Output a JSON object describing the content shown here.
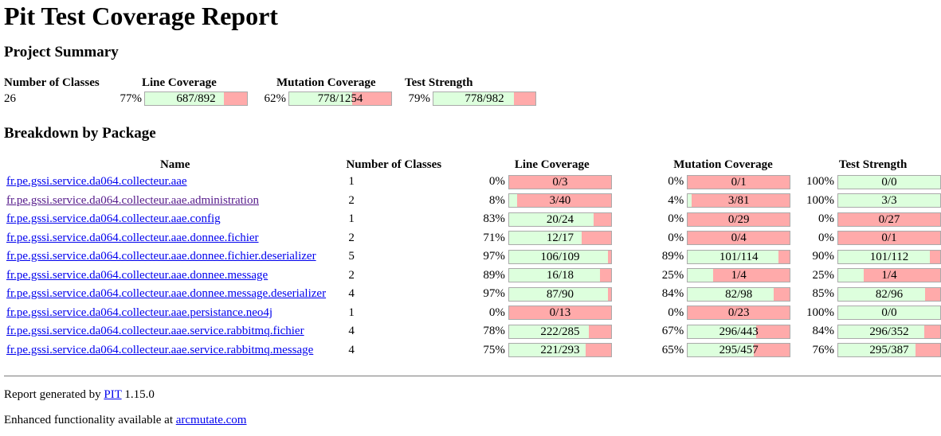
{
  "title": "Pit Test Coverage Report",
  "project_summary": {
    "heading": "Project Summary",
    "headers": [
      "Number of Classes",
      "Line Coverage",
      "Mutation Coverage",
      "Test Strength"
    ],
    "classes": "26",
    "line": {
      "pct": "77%",
      "label": "687/892",
      "fraction": 0.77
    },
    "mutation": {
      "pct": "62%",
      "label": "778/1254",
      "fraction": 0.62
    },
    "strength": {
      "pct": "79%",
      "label": "778/982",
      "fraction": 0.79
    }
  },
  "breakdown": {
    "heading": "Breakdown by Package",
    "headers": [
      "Name",
      "Number of Classes",
      "Line Coverage",
      "Mutation Coverage",
      "Test Strength"
    ],
    "rows": [
      {
        "name": "fr.pe.gssi.service.da064.collecteur.aae",
        "visited": false,
        "classes": "1",
        "line": {
          "pct": "0%",
          "label": "0/3",
          "fraction": 0
        },
        "mutation": {
          "pct": "0%",
          "label": "0/1",
          "fraction": 0
        },
        "strength": {
          "pct": "100%",
          "label": "0/0",
          "fraction": 1
        }
      },
      {
        "name": "fr.pe.gssi.service.da064.collecteur.aae.administration",
        "visited": true,
        "classes": "2",
        "line": {
          "pct": "8%",
          "label": "3/40",
          "fraction": 0.08
        },
        "mutation": {
          "pct": "4%",
          "label": "3/81",
          "fraction": 0.04
        },
        "strength": {
          "pct": "100%",
          "label": "3/3",
          "fraction": 1
        }
      },
      {
        "name": "fr.pe.gssi.service.da064.collecteur.aae.config",
        "visited": false,
        "classes": "1",
        "line": {
          "pct": "83%",
          "label": "20/24",
          "fraction": 0.83
        },
        "mutation": {
          "pct": "0%",
          "label": "0/29",
          "fraction": 0
        },
        "strength": {
          "pct": "0%",
          "label": "0/27",
          "fraction": 0
        }
      },
      {
        "name": "fr.pe.gssi.service.da064.collecteur.aae.donnee.fichier",
        "visited": false,
        "classes": "2",
        "line": {
          "pct": "71%",
          "label": "12/17",
          "fraction": 0.71
        },
        "mutation": {
          "pct": "0%",
          "label": "0/4",
          "fraction": 0
        },
        "strength": {
          "pct": "0%",
          "label": "0/1",
          "fraction": 0
        }
      },
      {
        "name": "fr.pe.gssi.service.da064.collecteur.aae.donnee.fichier.deserializer",
        "visited": false,
        "classes": "5",
        "line": {
          "pct": "97%",
          "label": "106/109",
          "fraction": 0.97
        },
        "mutation": {
          "pct": "89%",
          "label": "101/114",
          "fraction": 0.89
        },
        "strength": {
          "pct": "90%",
          "label": "101/112",
          "fraction": 0.9
        }
      },
      {
        "name": "fr.pe.gssi.service.da064.collecteur.aae.donnee.message",
        "visited": false,
        "classes": "2",
        "line": {
          "pct": "89%",
          "label": "16/18",
          "fraction": 0.89
        },
        "mutation": {
          "pct": "25%",
          "label": "1/4",
          "fraction": 0.25
        },
        "strength": {
          "pct": "25%",
          "label": "1/4",
          "fraction": 0.25
        }
      },
      {
        "name": "fr.pe.gssi.service.da064.collecteur.aae.donnee.message.deserializer",
        "visited": false,
        "classes": "4",
        "line": {
          "pct": "97%",
          "label": "87/90",
          "fraction": 0.97
        },
        "mutation": {
          "pct": "84%",
          "label": "82/98",
          "fraction": 0.84
        },
        "strength": {
          "pct": "85%",
          "label": "82/96",
          "fraction": 0.85
        }
      },
      {
        "name": "fr.pe.gssi.service.da064.collecteur.aae.persistance.neo4j",
        "visited": false,
        "classes": "1",
        "line": {
          "pct": "0%",
          "label": "0/13",
          "fraction": 0
        },
        "mutation": {
          "pct": "0%",
          "label": "0/23",
          "fraction": 0
        },
        "strength": {
          "pct": "100%",
          "label": "0/0",
          "fraction": 1
        }
      },
      {
        "name": "fr.pe.gssi.service.da064.collecteur.aae.service.rabbitmq.fichier",
        "visited": false,
        "classes": "4",
        "line": {
          "pct": "78%",
          "label": "222/285",
          "fraction": 0.78
        },
        "mutation": {
          "pct": "67%",
          "label": "296/443",
          "fraction": 0.67
        },
        "strength": {
          "pct": "84%",
          "label": "296/352",
          "fraction": 0.84
        }
      },
      {
        "name": "fr.pe.gssi.service.da064.collecteur.aae.service.rabbitmq.message",
        "visited": false,
        "classes": "4",
        "line": {
          "pct": "75%",
          "label": "221/293",
          "fraction": 0.75
        },
        "mutation": {
          "pct": "65%",
          "label": "295/457",
          "fraction": 0.65
        },
        "strength": {
          "pct": "76%",
          "label": "295/387",
          "fraction": 0.76
        }
      }
    ]
  },
  "footer": {
    "generated_prefix": "Report generated by ",
    "pit_link": "PIT",
    "version": " 1.15.0",
    "enhanced_prefix": "Enhanced functionality available at ",
    "arcmutate_link": "arcmutate.com"
  }
}
